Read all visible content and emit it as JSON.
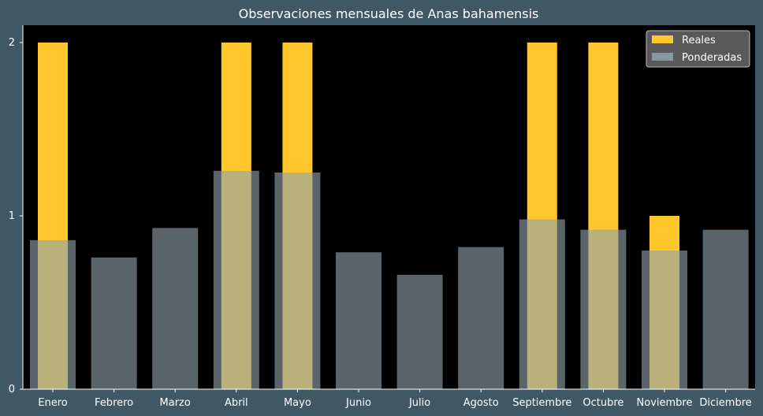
{
  "chart_data": {
    "type": "bar",
    "title": "Observaciones mensuales de Anas bahamensis",
    "xlabel": "",
    "ylabel": "",
    "categories": [
      "Enero",
      "Febrero",
      "Marzo",
      "Abril",
      "Mayo",
      "Junio",
      "Julio",
      "Agosto",
      "Septiembre",
      "Octubre",
      "Noviembre",
      "Diciembre"
    ],
    "series": [
      {
        "name": "Reales",
        "color": "#ffc72c",
        "values": [
          2,
          0,
          0,
          2,
          2,
          0,
          0,
          0,
          2,
          2,
          1,
          0
        ]
      },
      {
        "name": "Ponderadas",
        "color": "#8fa3ab",
        "values": [
          0.86,
          0.76,
          0.93,
          1.26,
          1.25,
          0.79,
          0.66,
          0.82,
          0.98,
          0.92,
          0.8,
          0.92
        ]
      }
    ],
    "ylim": [
      0,
      2.1
    ],
    "yticks": [
      0,
      1,
      2
    ],
    "grid": false,
    "legend": "top-right",
    "colors": {
      "background": "#3f5866",
      "plot_area": "#000000",
      "text": "#ffffff"
    }
  }
}
